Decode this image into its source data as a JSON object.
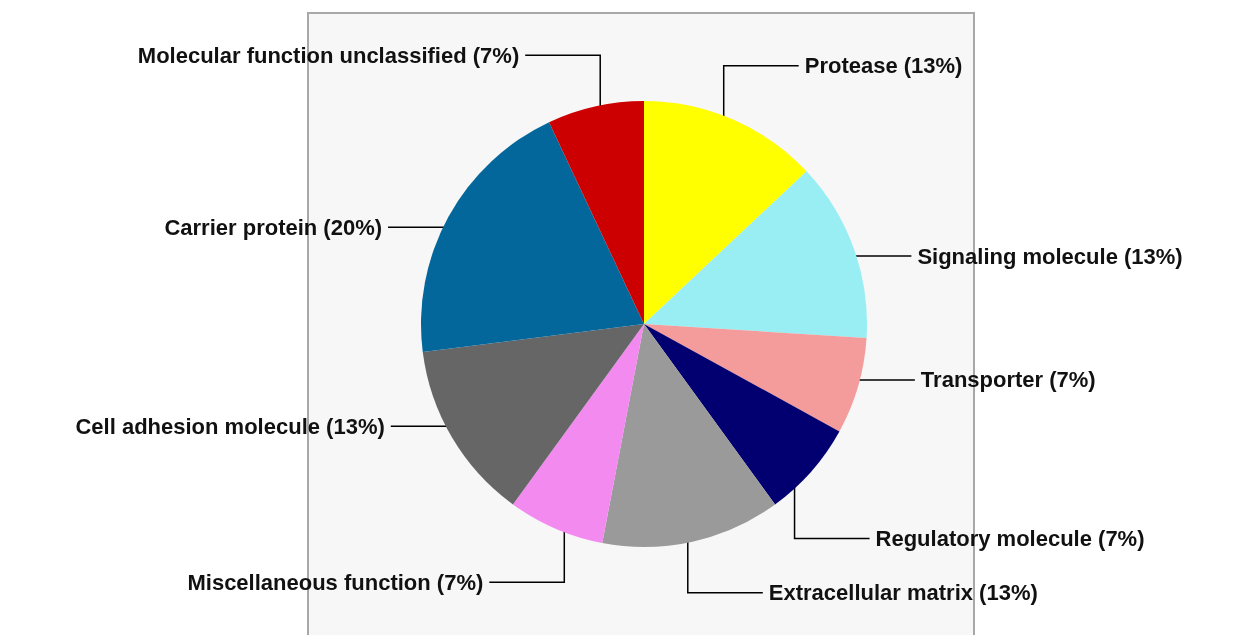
{
  "chart_data": {
    "type": "pie",
    "categories": [
      "Protease (13%)",
      "Signaling molecule (13%)",
      "Transporter (7%)",
      "Regulatory molecule (7%)",
      "Extracellular matrix (13%)",
      "Miscellaneous function (7%)",
      "Cell adhesion molecule (13%)",
      "Carrier protein (20%)",
      "Molecular function unclassified (7%)"
    ],
    "values": [
      13,
      13,
      7,
      7,
      13,
      7,
      13,
      20,
      7
    ],
    "colors": [
      "#ffff00",
      "#99eef4",
      "#f49c9c",
      "#020070",
      "#9a9a9a",
      "#f28af0",
      "#666666",
      "#03679b",
      "#cc0000"
    ]
  }
}
